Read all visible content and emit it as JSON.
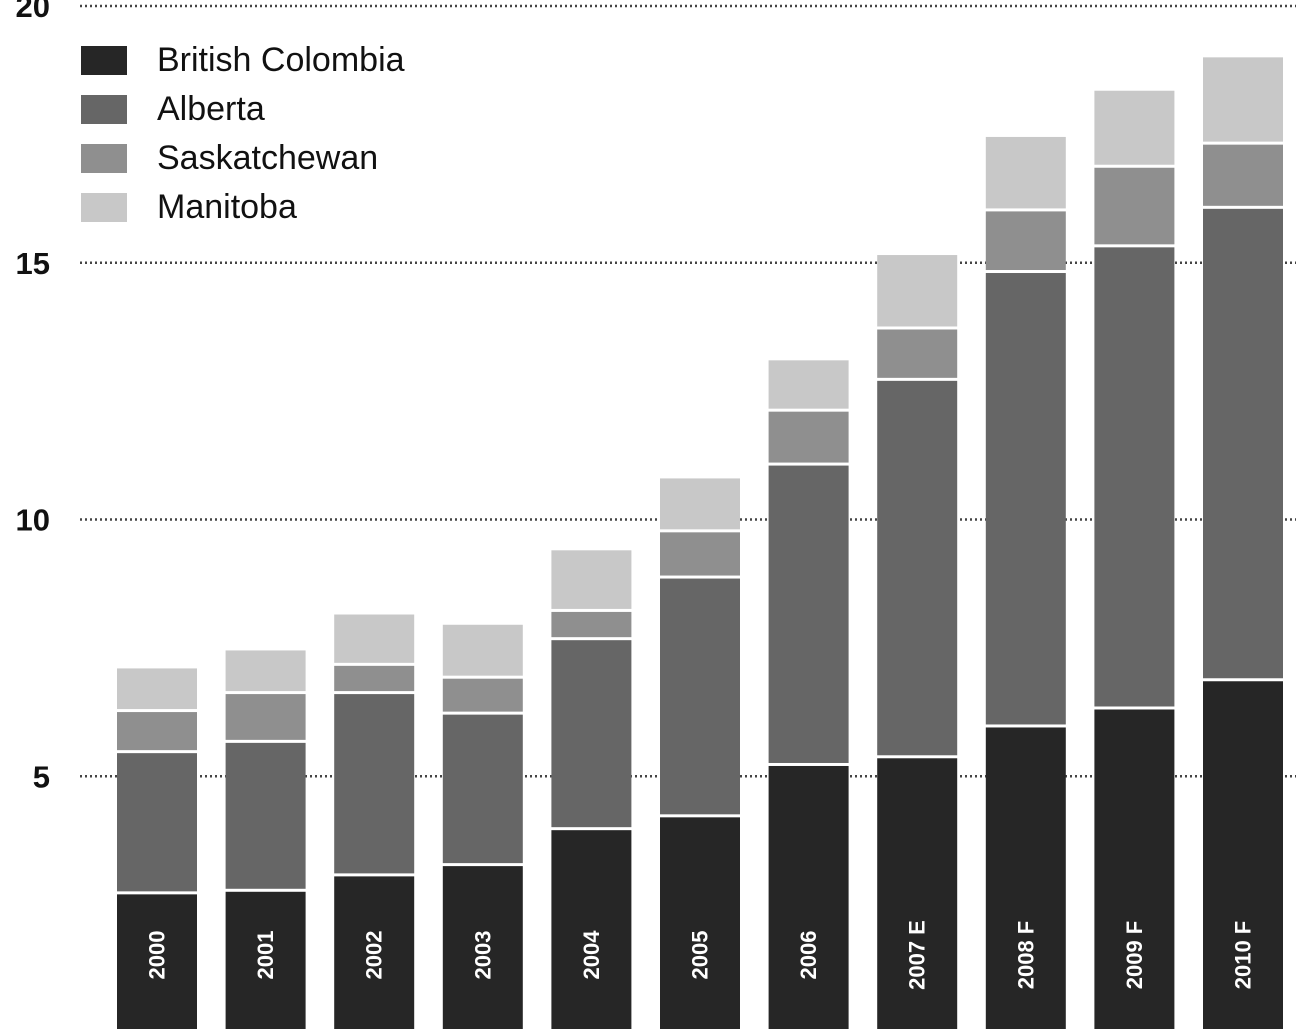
{
  "chart_data": {
    "type": "bar",
    "stacked": true,
    "orientation": "vertical",
    "categories": [
      "2000",
      "2001",
      "2002",
      "2003",
      "2004",
      "2005",
      "2006",
      "2007 E",
      "2008 F",
      "2009 F",
      "2010 F"
    ],
    "series": [
      {
        "name": "British Colombia",
        "color": "#262626",
        "values": [
          2.7,
          2.75,
          3.05,
          3.25,
          3.95,
          4.2,
          5.2,
          5.35,
          5.95,
          6.3,
          6.85
        ]
      },
      {
        "name": "Alberta",
        "color": "#666666",
        "values": [
          2.75,
          2.9,
          3.55,
          2.95,
          3.7,
          4.65,
          5.85,
          7.35,
          8.85,
          9.0,
          9.2
        ]
      },
      {
        "name": "Saskatchewan",
        "color": "#8f8f8f",
        "values": [
          0.8,
          0.95,
          0.55,
          0.7,
          0.55,
          0.9,
          1.05,
          1.0,
          1.2,
          1.55,
          1.25
        ]
      },
      {
        "name": "Manitoba",
        "color": "#c8c8c8",
        "values": [
          0.85,
          0.85,
          1.0,
          1.05,
          1.2,
          1.05,
          1.0,
          1.45,
          1.45,
          1.5,
          1.7
        ]
      }
    ],
    "y_ticks": [
      5,
      10,
      15,
      20
    ],
    "ylim": [
      0,
      20
    ],
    "grid": "horizontal dotted",
    "legend_position": "top-left",
    "title": "",
    "xlabel": "",
    "ylabel": ""
  }
}
